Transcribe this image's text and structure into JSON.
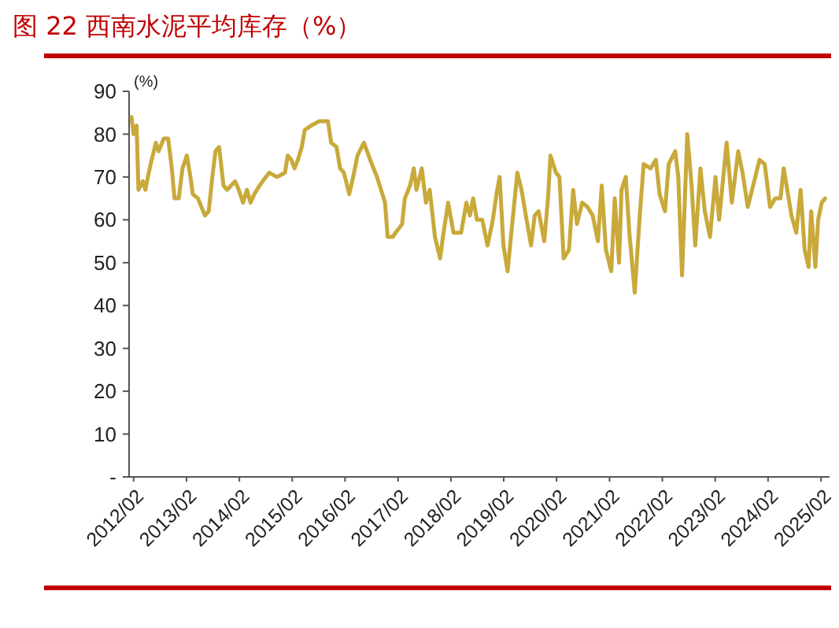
{
  "chart_data": {
    "type": "line",
    "title": "图 22 西南水泥平均库存（%）",
    "ylabel": "(%)",
    "x": [
      "2012-01-17",
      "2012-02-01",
      "2012-02-22",
      "2012-03-06",
      "2012-04-05",
      "2012-04-23",
      "2012-05-10",
      "2012-05-29",
      "2012-07-04",
      "2012-07-23",
      "2012-08-28",
      "2012-09-27",
      "2012-10-22",
      "2012-11-10",
      "2012-12-09",
      "2013-01-04",
      "2013-02-03",
      "2013-02-28",
      "2013-03-16",
      "2013-04-21",
      "2013-06-08",
      "2013-07-04",
      "2013-07-29",
      "2013-08-20",
      "2013-09-14",
      "2013-10-14",
      "2013-11-08",
      "2014-01-02",
      "2014-01-28",
      "2014-02-26",
      "2014-03-25",
      "2014-04-19",
      "2014-05-15",
      "2014-06-21",
      "2014-07-12",
      "2014-08-26",
      "2014-10-19",
      "2014-12-13",
      "2015-01-01",
      "2015-01-26",
      "2015-02-17",
      "2015-03-12",
      "2015-04-08",
      "2015-04-29",
      "2015-06-12",
      "2015-08-06",
      "2015-10-06",
      "2015-10-28",
      "2015-12-04",
      "2015-12-29",
      "2016-01-24",
      "2016-03-01",
      "2016-03-28",
      "2016-04-27",
      "2016-06-10",
      "2016-08-04",
      "2016-09-09",
      "2016-10-16",
      "2016-11-03",
      "2016-11-21",
      "2016-12-27",
      "2017-01-15",
      "2017-03-01",
      "2017-03-20",
      "2017-04-25",
      "2017-05-21",
      "2017-06-08",
      "2017-07-15",
      "2017-08-13",
      "2017-09-08",
      "2017-10-14",
      "2017-11-19",
      "2017-12-08",
      "2018-01-13",
      "2018-02-19",
      "2018-04-13",
      "2018-05-19",
      "2018-06-13",
      "2018-07-05",
      "2018-07-31",
      "2018-09-06",
      "2018-10-12",
      "2018-11-18",
      "2018-12-13",
      "2019-01-04",
      "2019-01-30",
      "2019-02-28",
      "2019-03-23",
      "2019-05-06",
      "2019-06-04",
      "2019-07-04",
      "2019-08-09",
      "2019-09-03",
      "2019-09-30",
      "2019-11-08",
      "2019-12-04",
      "2019-12-21",
      "2020-01-28",
      "2020-02-21",
      "2020-03-21",
      "2020-04-27",
      "2020-05-26",
      "2020-06-21",
      "2020-07-27",
      "2020-09-02",
      "2020-10-08",
      "2020-11-13",
      "2020-12-09",
      "2021-01-07",
      "2021-02-13",
      "2021-03-09",
      "2021-04-08",
      "2021-04-25",
      "2021-05-24",
      "2021-06-18",
      "2021-07-25",
      "2021-08-31",
      "2021-09-25",
      "2021-11-12",
      "2021-12-18",
      "2022-01-13",
      "2022-02-19",
      "2022-03-17",
      "2022-05-01",
      "2022-05-22",
      "2022-06-17",
      "2022-07-23",
      "2022-08-22",
      "2022-09-16",
      "2022-10-22",
      "2022-11-21",
      "2022-12-27",
      "2023-02-03",
      "2023-02-28",
      "2023-03-23",
      "2023-04-21",
      "2023-05-27",
      "2023-07-10",
      "2023-08-09",
      "2023-09-14",
      "2023-10-21",
      "2023-12-04",
      "2024-01-09",
      "2024-02-15",
      "2024-03-22",
      "2024-04-27",
      "2024-05-19",
      "2024-06-13",
      "2024-07-12",
      "2024-08-14",
      "2024-09-13",
      "2024-10-11",
      "2024-11-07",
      "2024-11-25",
      "2024-12-24",
      "2025-01-12",
      "2025-02-06",
      "2025-03-01"
    ],
    "series": [
      {
        "color": "#c8a93a",
        "values": [
          84,
          80,
          82,
          67,
          69,
          67,
          70,
          73,
          78,
          76,
          79,
          79,
          72,
          65,
          65,
          72,
          75,
          70,
          66,
          65,
          61,
          62,
          70,
          76,
          77,
          68,
          67,
          69,
          67,
          64,
          67,
          64,
          66,
          68,
          69,
          71,
          70,
          71,
          75,
          74,
          72,
          74,
          77,
          81,
          82,
          83,
          83,
          78,
          77,
          72,
          71,
          66,
          70,
          75,
          78,
          73,
          70,
          66,
          64,
          56,
          56,
          57,
          59,
          65,
          68,
          72,
          67,
          72,
          64,
          67,
          56,
          51,
          56,
          64,
          57,
          57,
          64,
          61,
          65,
          60,
          60,
          54,
          60,
          66,
          70,
          54,
          48,
          56,
          71,
          67,
          61,
          54,
          61,
          62,
          55,
          65,
          75,
          71,
          70,
          51,
          53,
          67,
          59,
          64,
          63,
          61,
          55,
          68,
          53,
          48,
          65,
          50,
          67,
          70,
          57,
          43,
          62,
          73,
          72,
          74,
          66,
          62,
          73,
          76,
          70,
          47,
          80,
          68,
          54,
          72,
          62,
          56,
          70,
          60,
          68,
          78,
          64,
          76,
          71,
          63,
          68,
          74,
          73,
          63,
          65,
          65,
          72,
          67,
          61,
          57,
          67,
          53,
          49,
          62,
          49,
          60,
          64,
          65
        ]
      }
    ],
    "xlim": [
      "2012-01-01",
      "2025-04-01"
    ],
    "xticks": [
      {
        "value": "2012-02-01",
        "label": "2012/02"
      },
      {
        "value": "2013-02-01",
        "label": "2013/02"
      },
      {
        "value": "2014-02-01",
        "label": "2014/02"
      },
      {
        "value": "2015-02-01",
        "label": "2015/02"
      },
      {
        "value": "2016-02-01",
        "label": "2016/02"
      },
      {
        "value": "2017-02-01",
        "label": "2017/02"
      },
      {
        "value": "2018-02-01",
        "label": "2018/02"
      },
      {
        "value": "2019-02-01",
        "label": "2019/02"
      },
      {
        "value": "2020-02-01",
        "label": "2020/02"
      },
      {
        "value": "2021-02-01",
        "label": "2021/02"
      },
      {
        "value": "2022-02-01",
        "label": "2022/02"
      },
      {
        "value": "2023-02-01",
        "label": "2023/02"
      },
      {
        "value": "2024-02-01",
        "label": "2024/02"
      },
      {
        "value": "2025-02-01",
        "label": "2025/02"
      }
    ],
    "ylim": [
      0,
      90
    ],
    "yticks": [
      {
        "value": 0,
        "label": "-"
      },
      10,
      20,
      30,
      40,
      50,
      60,
      70,
      80,
      90
    ],
    "grid": false,
    "marker": "none",
    "line_style": "solid"
  }
}
